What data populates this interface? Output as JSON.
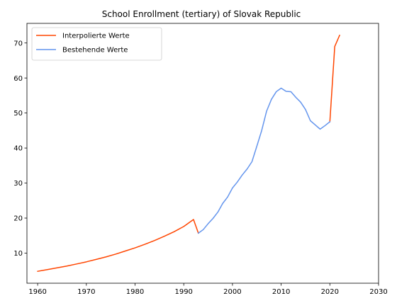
{
  "chart_data": {
    "type": "line",
    "title": "School Enrollment (tertiary) of Slovak Republic",
    "xlabel": "",
    "ylabel": "",
    "xlim": [
      1957.8,
      2030
    ],
    "ylim": [
      1.4,
      75.6
    ],
    "x_ticks": [
      1960,
      1970,
      1980,
      1990,
      2000,
      2010,
      2020,
      2030
    ],
    "y_ticks": [
      10,
      20,
      30,
      40,
      50,
      60,
      70
    ],
    "grid": false,
    "legend_position": "top-left",
    "series": [
      {
        "name": "Interpolierte Werte",
        "color": "#ff4500",
        "segments": [
          {
            "x": [
              1960,
              1962,
              1964,
              1966,
              1968,
              1970,
              1972,
              1974,
              1976,
              1978,
              1980,
              1982,
              1984,
              1986,
              1988,
              1990,
              1992,
              1993
            ],
            "y": [
              4.8,
              5.3,
              5.8,
              6.3,
              6.9,
              7.5,
              8.2,
              8.9,
              9.7,
              10.6,
              11.5,
              12.5,
              13.6,
              14.8,
              16.1,
              17.6,
              19.6,
              15.7
            ]
          },
          {
            "x": [
              2020,
              2021,
              2022
            ],
            "y": [
              47.5,
              69.0,
              72.2
            ]
          }
        ]
      },
      {
        "name": "Bestehende Werte",
        "color": "#6495ed",
        "segments": [
          {
            "x": [
              1993,
              1994,
              1995,
              1996,
              1997,
              1998,
              1999,
              2000,
              2001,
              2002,
              2003,
              2004,
              2005,
              2006,
              2007,
              2008,
              2009,
              2010,
              2011,
              2012,
              2013,
              2014,
              2015,
              2016,
              2017,
              2018,
              2019,
              2020
            ],
            "y": [
              15.7,
              16.7,
              18.4,
              19.9,
              21.7,
              24.2,
              26.0,
              28.6,
              30.3,
              32.3,
              34.0,
              36.1,
              40.5,
              45.0,
              50.5,
              53.9,
              56.1,
              57.1,
              56.2,
              56.1,
              54.5,
              53.1,
              51.0,
              47.8,
              46.6,
              45.4,
              46.4,
              47.5
            ]
          }
        ]
      }
    ]
  }
}
